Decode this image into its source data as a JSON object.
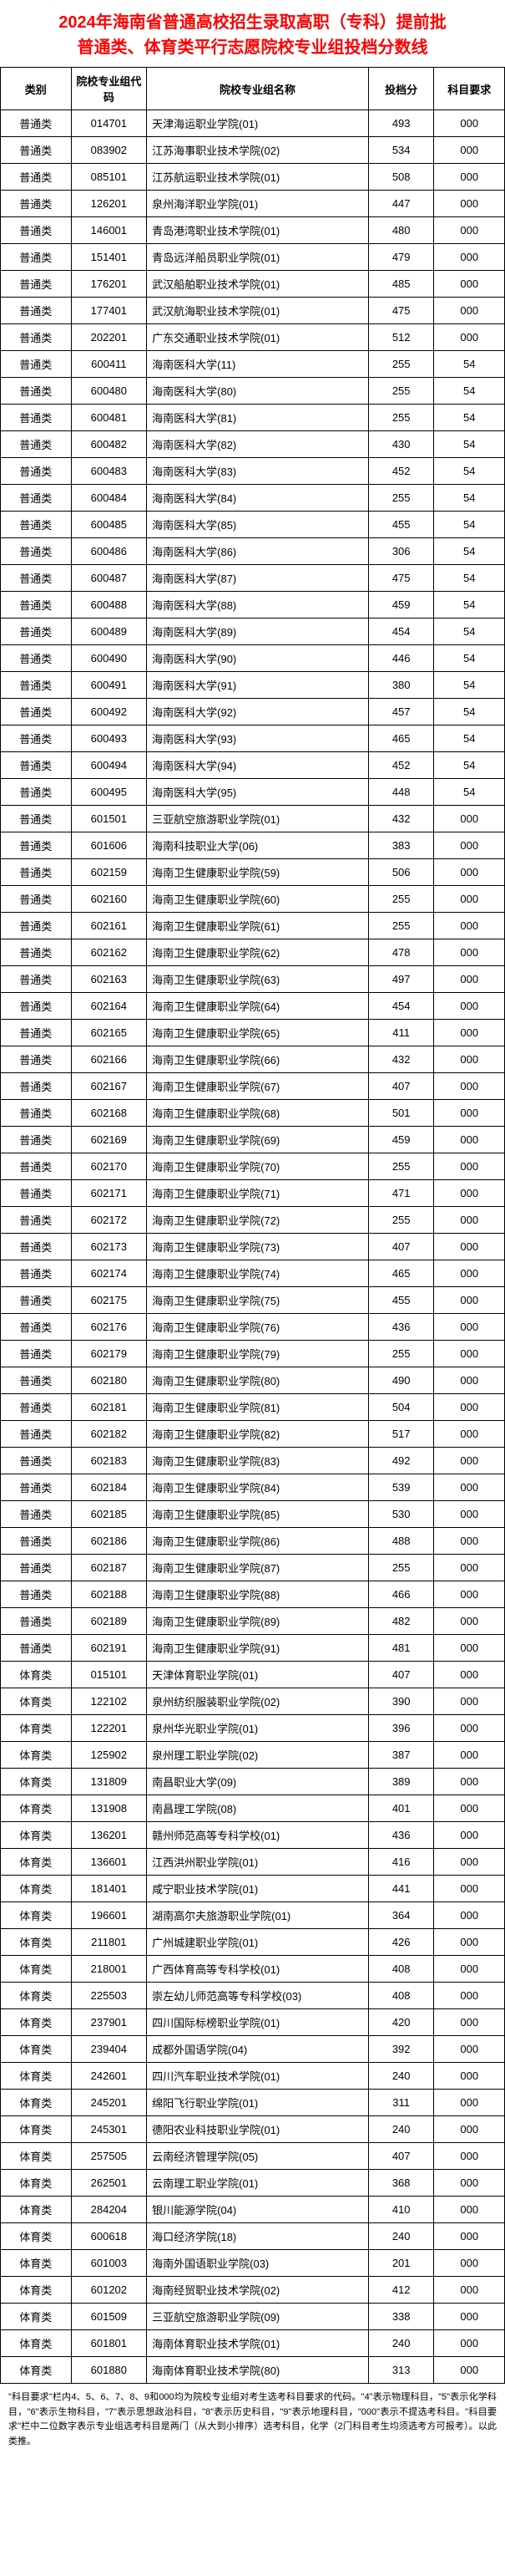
{
  "title": {
    "line1": "2024年海南省普通高校招生录取高职（专科）提前批",
    "line2": "普通类、体育类平行志愿院校专业组投档分数线"
  },
  "headers": {
    "category": "类别",
    "code": "院校专业组代码",
    "name": "院校专业组名称",
    "score": "投档分",
    "requirement": "科目要求"
  },
  "rows": [
    {
      "cat": "普通类",
      "code": "014701",
      "name": "天津海运职业学院(01)",
      "score": "493",
      "req": "000"
    },
    {
      "cat": "普通类",
      "code": "083902",
      "name": "江苏海事职业技术学院(02)",
      "score": "534",
      "req": "000"
    },
    {
      "cat": "普通类",
      "code": "085101",
      "name": "江苏航运职业技术学院(01)",
      "score": "508",
      "req": "000"
    },
    {
      "cat": "普通类",
      "code": "126201",
      "name": "泉州海洋职业学院(01)",
      "score": "447",
      "req": "000"
    },
    {
      "cat": "普通类",
      "code": "146001",
      "name": "青岛港湾职业技术学院(01)",
      "score": "480",
      "req": "000"
    },
    {
      "cat": "普通类",
      "code": "151401",
      "name": "青岛远洋船员职业学院(01)",
      "score": "479",
      "req": "000"
    },
    {
      "cat": "普通类",
      "code": "176201",
      "name": "武汉船舶职业技术学院(01)",
      "score": "485",
      "req": "000"
    },
    {
      "cat": "普通类",
      "code": "177401",
      "name": "武汉航海职业技术学院(01)",
      "score": "475",
      "req": "000"
    },
    {
      "cat": "普通类",
      "code": "202201",
      "name": "广东交通职业技术学院(01)",
      "score": "512",
      "req": "000"
    },
    {
      "cat": "普通类",
      "code": "600411",
      "name": "海南医科大学(11)",
      "score": "255",
      "req": "54"
    },
    {
      "cat": "普通类",
      "code": "600480",
      "name": "海南医科大学(80)",
      "score": "255",
      "req": "54"
    },
    {
      "cat": "普通类",
      "code": "600481",
      "name": "海南医科大学(81)",
      "score": "255",
      "req": "54"
    },
    {
      "cat": "普通类",
      "code": "600482",
      "name": "海南医科大学(82)",
      "score": "430",
      "req": "54"
    },
    {
      "cat": "普通类",
      "code": "600483",
      "name": "海南医科大学(83)",
      "score": "452",
      "req": "54"
    },
    {
      "cat": "普通类",
      "code": "600484",
      "name": "海南医科大学(84)",
      "score": "255",
      "req": "54"
    },
    {
      "cat": "普通类",
      "code": "600485",
      "name": "海南医科大学(85)",
      "score": "455",
      "req": "54"
    },
    {
      "cat": "普通类",
      "code": "600486",
      "name": "海南医科大学(86)",
      "score": "306",
      "req": "54"
    },
    {
      "cat": "普通类",
      "code": "600487",
      "name": "海南医科大学(87)",
      "score": "475",
      "req": "54"
    },
    {
      "cat": "普通类",
      "code": "600488",
      "name": "海南医科大学(88)",
      "score": "459",
      "req": "54"
    },
    {
      "cat": "普通类",
      "code": "600489",
      "name": "海南医科大学(89)",
      "score": "454",
      "req": "54"
    },
    {
      "cat": "普通类",
      "code": "600490",
      "name": "海南医科大学(90)",
      "score": "446",
      "req": "54"
    },
    {
      "cat": "普通类",
      "code": "600491",
      "name": "海南医科大学(91)",
      "score": "380",
      "req": "54"
    },
    {
      "cat": "普通类",
      "code": "600492",
      "name": "海南医科大学(92)",
      "score": "457",
      "req": "54"
    },
    {
      "cat": "普通类",
      "code": "600493",
      "name": "海南医科大学(93)",
      "score": "465",
      "req": "54"
    },
    {
      "cat": "普通类",
      "code": "600494",
      "name": "海南医科大学(94)",
      "score": "452",
      "req": "54"
    },
    {
      "cat": "普通类",
      "code": "600495",
      "name": "海南医科大学(95)",
      "score": "448",
      "req": "54"
    },
    {
      "cat": "普通类",
      "code": "601501",
      "name": "三亚航空旅游职业学院(01)",
      "score": "432",
      "req": "000"
    },
    {
      "cat": "普通类",
      "code": "601606",
      "name": "海南科技职业大学(06)",
      "score": "383",
      "req": "000"
    },
    {
      "cat": "普通类",
      "code": "602159",
      "name": "海南卫生健康职业学院(59)",
      "score": "506",
      "req": "000"
    },
    {
      "cat": "普通类",
      "code": "602160",
      "name": "海南卫生健康职业学院(60)",
      "score": "255",
      "req": "000"
    },
    {
      "cat": "普通类",
      "code": "602161",
      "name": "海南卫生健康职业学院(61)",
      "score": "255",
      "req": "000"
    },
    {
      "cat": "普通类",
      "code": "602162",
      "name": "海南卫生健康职业学院(62)",
      "score": "478",
      "req": "000"
    },
    {
      "cat": "普通类",
      "code": "602163",
      "name": "海南卫生健康职业学院(63)",
      "score": "497",
      "req": "000"
    },
    {
      "cat": "普通类",
      "code": "602164",
      "name": "海南卫生健康职业学院(64)",
      "score": "454",
      "req": "000"
    },
    {
      "cat": "普通类",
      "code": "602165",
      "name": "海南卫生健康职业学院(65)",
      "score": "411",
      "req": "000"
    },
    {
      "cat": "普通类",
      "code": "602166",
      "name": "海南卫生健康职业学院(66)",
      "score": "432",
      "req": "000"
    },
    {
      "cat": "普通类",
      "code": "602167",
      "name": "海南卫生健康职业学院(67)",
      "score": "407",
      "req": "000"
    },
    {
      "cat": "普通类",
      "code": "602168",
      "name": "海南卫生健康职业学院(68)",
      "score": "501",
      "req": "000"
    },
    {
      "cat": "普通类",
      "code": "602169",
      "name": "海南卫生健康职业学院(69)",
      "score": "459",
      "req": "000"
    },
    {
      "cat": "普通类",
      "code": "602170",
      "name": "海南卫生健康职业学院(70)",
      "score": "255",
      "req": "000"
    },
    {
      "cat": "普通类",
      "code": "602171",
      "name": "海南卫生健康职业学院(71)",
      "score": "471",
      "req": "000"
    },
    {
      "cat": "普通类",
      "code": "602172",
      "name": "海南卫生健康职业学院(72)",
      "score": "255",
      "req": "000"
    },
    {
      "cat": "普通类",
      "code": "602173",
      "name": "海南卫生健康职业学院(73)",
      "score": "407",
      "req": "000"
    },
    {
      "cat": "普通类",
      "code": "602174",
      "name": "海南卫生健康职业学院(74)",
      "score": "465",
      "req": "000"
    },
    {
      "cat": "普通类",
      "code": "602175",
      "name": "海南卫生健康职业学院(75)",
      "score": "455",
      "req": "000"
    },
    {
      "cat": "普通类",
      "code": "602176",
      "name": "海南卫生健康职业学院(76)",
      "score": "436",
      "req": "000"
    },
    {
      "cat": "普通类",
      "code": "602179",
      "name": "海南卫生健康职业学院(79)",
      "score": "255",
      "req": "000"
    },
    {
      "cat": "普通类",
      "code": "602180",
      "name": "海南卫生健康职业学院(80)",
      "score": "490",
      "req": "000"
    },
    {
      "cat": "普通类",
      "code": "602181",
      "name": "海南卫生健康职业学院(81)",
      "score": "504",
      "req": "000"
    },
    {
      "cat": "普通类",
      "code": "602182",
      "name": "海南卫生健康职业学院(82)",
      "score": "517",
      "req": "000"
    },
    {
      "cat": "普通类",
      "code": "602183",
      "name": "海南卫生健康职业学院(83)",
      "score": "492",
      "req": "000"
    },
    {
      "cat": "普通类",
      "code": "602184",
      "name": "海南卫生健康职业学院(84)",
      "score": "539",
      "req": "000"
    },
    {
      "cat": "普通类",
      "code": "602185",
      "name": "海南卫生健康职业学院(85)",
      "score": "530",
      "req": "000"
    },
    {
      "cat": "普通类",
      "code": "602186",
      "name": "海南卫生健康职业学院(86)",
      "score": "488",
      "req": "000"
    },
    {
      "cat": "普通类",
      "code": "602187",
      "name": "海南卫生健康职业学院(87)",
      "score": "255",
      "req": "000"
    },
    {
      "cat": "普通类",
      "code": "602188",
      "name": "海南卫生健康职业学院(88)",
      "score": "466",
      "req": "000"
    },
    {
      "cat": "普通类",
      "code": "602189",
      "name": "海南卫生健康职业学院(89)",
      "score": "482",
      "req": "000"
    },
    {
      "cat": "普通类",
      "code": "602191",
      "name": "海南卫生健康职业学院(91)",
      "score": "481",
      "req": "000"
    },
    {
      "cat": "体育类",
      "code": "015101",
      "name": "天津体育职业学院(01)",
      "score": "407",
      "req": "000"
    },
    {
      "cat": "体育类",
      "code": "122102",
      "name": "泉州纺织服装职业学院(02)",
      "score": "390",
      "req": "000"
    },
    {
      "cat": "体育类",
      "code": "122201",
      "name": "泉州华光职业学院(01)",
      "score": "396",
      "req": "000"
    },
    {
      "cat": "体育类",
      "code": "125902",
      "name": "泉州理工职业学院(02)",
      "score": "387",
      "req": "000"
    },
    {
      "cat": "体育类",
      "code": "131809",
      "name": "南昌职业大学(09)",
      "score": "389",
      "req": "000"
    },
    {
      "cat": "体育类",
      "code": "131908",
      "name": "南昌理工学院(08)",
      "score": "401",
      "req": "000"
    },
    {
      "cat": "体育类",
      "code": "136201",
      "name": "赣州师范高等专科学校(01)",
      "score": "436",
      "req": "000"
    },
    {
      "cat": "体育类",
      "code": "136601",
      "name": "江西洪州职业学院(01)",
      "score": "416",
      "req": "000"
    },
    {
      "cat": "体育类",
      "code": "181401",
      "name": "咸宁职业技术学院(01)",
      "score": "441",
      "req": "000"
    },
    {
      "cat": "体育类",
      "code": "196601",
      "name": "湖南高尔夫旅游职业学院(01)",
      "score": "364",
      "req": "000"
    },
    {
      "cat": "体育类",
      "code": "211801",
      "name": "广州城建职业学院(01)",
      "score": "426",
      "req": "000"
    },
    {
      "cat": "体育类",
      "code": "218001",
      "name": "广西体育高等专科学校(01)",
      "score": "408",
      "req": "000"
    },
    {
      "cat": "体育类",
      "code": "225503",
      "name": "崇左幼儿师范高等专科学校(03)",
      "score": "408",
      "req": "000"
    },
    {
      "cat": "体育类",
      "code": "237901",
      "name": "四川国际标榜职业学院(01)",
      "score": "420",
      "req": "000"
    },
    {
      "cat": "体育类",
      "code": "239404",
      "name": "成都外国语学院(04)",
      "score": "392",
      "req": "000"
    },
    {
      "cat": "体育类",
      "code": "242601",
      "name": "四川汽车职业技术学院(01)",
      "score": "240",
      "req": "000"
    },
    {
      "cat": "体育类",
      "code": "245201",
      "name": "绵阳飞行职业学院(01)",
      "score": "311",
      "req": "000"
    },
    {
      "cat": "体育类",
      "code": "245301",
      "name": "德阳农业科技职业学院(01)",
      "score": "240",
      "req": "000"
    },
    {
      "cat": "体育类",
      "code": "257505",
      "name": "云南经济管理学院(05)",
      "score": "407",
      "req": "000"
    },
    {
      "cat": "体育类",
      "code": "262501",
      "name": "云南理工职业学院(01)",
      "score": "368",
      "req": "000"
    },
    {
      "cat": "体育类",
      "code": "284204",
      "name": "银川能源学院(04)",
      "score": "410",
      "req": "000"
    },
    {
      "cat": "体育类",
      "code": "600618",
      "name": "海口经济学院(18)",
      "score": "240",
      "req": "000"
    },
    {
      "cat": "体育类",
      "code": "601003",
      "name": "海南外国语职业学院(03)",
      "score": "201",
      "req": "000"
    },
    {
      "cat": "体育类",
      "code": "601202",
      "name": "海南经贸职业技术学院(02)",
      "score": "412",
      "req": "000"
    },
    {
      "cat": "体育类",
      "code": "601509",
      "name": "三亚航空旅游职业学院(09)",
      "score": "338",
      "req": "000"
    },
    {
      "cat": "体育类",
      "code": "601801",
      "name": "海南体育职业技术学院(01)",
      "score": "240",
      "req": "000"
    },
    {
      "cat": "体育类",
      "code": "601880",
      "name": "海南体育职业技术学院(80)",
      "score": "313",
      "req": "000"
    }
  ],
  "footnote": "\"科目要求\"栏内4、5、6、7、8、9和000均为院校专业组对考生选考科目要求的代码。\"4\"表示物理科目，\"5\"表示化学科目，\"6\"表示生物科目，\"7\"表示思想政治科目，\"8\"表示历史科目，\"9\"表示地理科目，\"000\"表示不提选考科目。\"科目要求\"栏中二位数字表示专业组选考科目是两门（从大到小排序）选考科目，化学（2门科目考生均须选考方可报考）。以此类推。"
}
